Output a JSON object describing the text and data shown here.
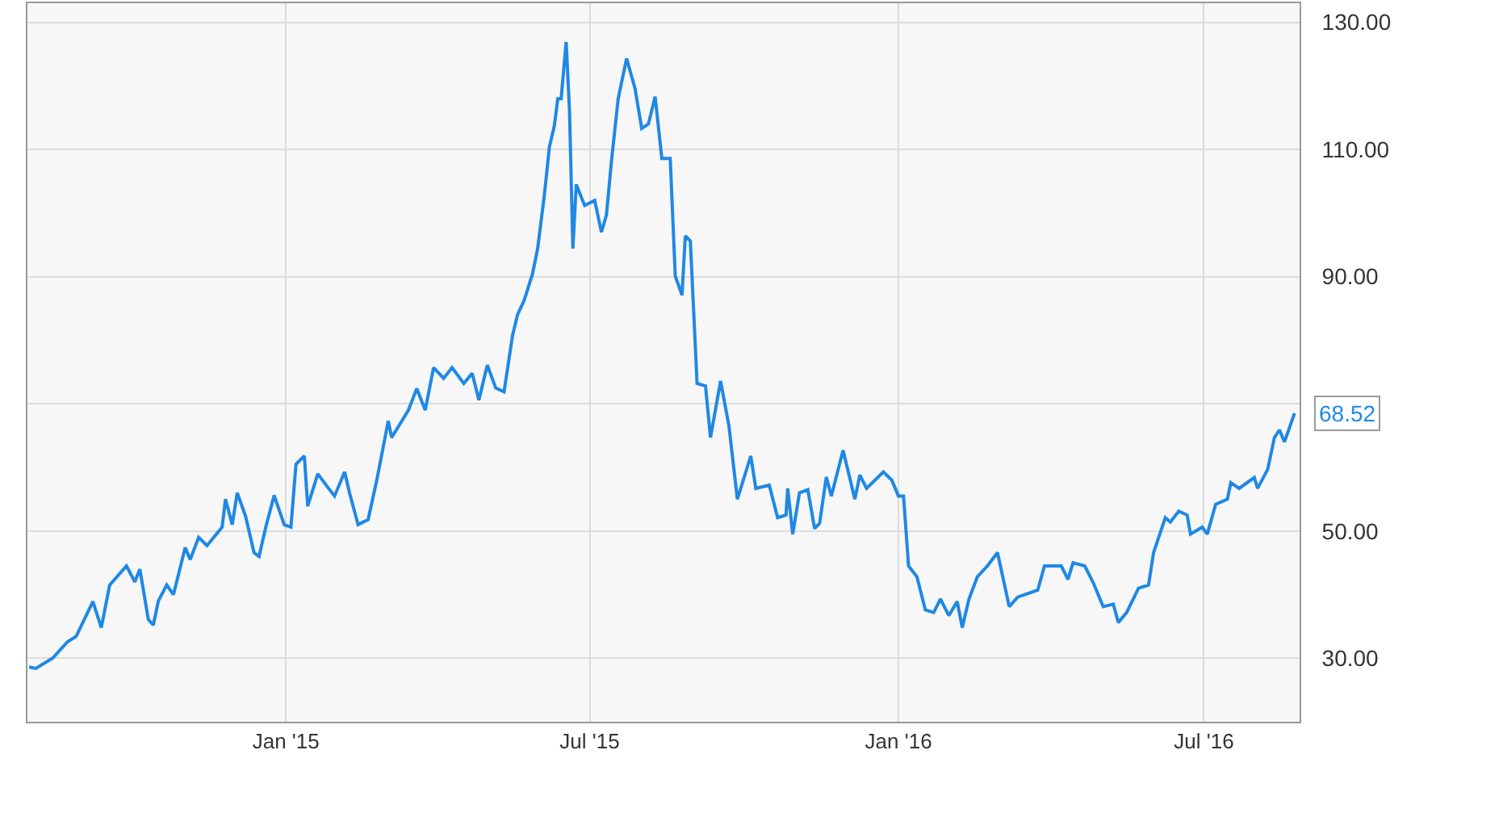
{
  "chart_data": {
    "type": "line",
    "x": [
      "2014-08-01",
      "2014-08-05",
      "2014-08-15",
      "2014-08-24",
      "2014-08-29",
      "2014-09-08",
      "2014-09-13",
      "2014-09-18",
      "2014-09-28",
      "2014-10-03",
      "2014-10-06",
      "2014-10-11",
      "2014-10-14",
      "2014-10-17",
      "2014-10-22",
      "2014-10-26",
      "2014-11-02",
      "2014-11-05",
      "2014-11-10",
      "2014-11-15",
      "2014-11-24",
      "2014-11-26",
      "2014-11-30",
      "2014-12-03",
      "2014-12-08",
      "2014-12-13",
      "2014-12-16",
      "2014-12-20",
      "2014-12-25",
      "2014-12-31",
      "2015-01-04",
      "2015-01-07",
      "2015-01-12",
      "2015-01-14",
      "2015-01-20",
      "2015-01-25",
      "2015-01-30",
      "2015-02-05",
      "2015-02-08",
      "2015-02-13",
      "2015-02-19",
      "2015-02-24",
      "2015-03-03",
      "2015-03-05",
      "2015-03-15",
      "2015-03-20",
      "2015-03-25",
      "2015-03-30",
      "2015-04-05",
      "2015-04-10",
      "2015-04-17",
      "2015-04-22",
      "2015-04-26",
      "2015-05-01",
      "2015-05-06",
      "2015-05-11",
      "2015-05-16",
      "2015-05-19",
      "2015-05-23",
      "2015-05-28",
      "2015-05-31",
      "2015-06-04",
      "2015-06-07",
      "2015-06-10",
      "2015-06-12",
      "2015-06-14",
      "2015-06-17",
      "2015-06-19",
      "2015-06-21",
      "2015-06-23",
      "2015-06-28",
      "2015-07-04",
      "2015-07-08",
      "2015-07-11",
      "2015-07-14",
      "2015-07-18",
      "2015-07-23",
      "2015-07-28",
      "2015-08-01",
      "2015-08-05",
      "2015-08-09",
      "2015-08-13",
      "2015-08-18",
      "2015-08-21",
      "2015-08-25",
      "2015-08-27",
      "2015-08-30",
      "2015-09-03",
      "2015-09-08",
      "2015-09-11",
      "2015-09-17",
      "2015-09-22",
      "2015-09-27",
      "2015-10-05",
      "2015-10-08",
      "2015-10-16",
      "2015-10-21",
      "2015-10-26",
      "2015-10-27",
      "2015-10-30",
      "2015-11-03",
      "2015-11-08",
      "2015-11-12",
      "2015-11-15",
      "2015-11-19",
      "2015-11-22",
      "2015-11-29",
      "2015-12-06",
      "2015-12-09",
      "2015-12-13",
      "2015-12-23",
      "2015-12-28",
      "2016-01-01",
      "2016-01-04",
      "2016-01-07",
      "2016-01-12",
      "2016-01-17",
      "2016-01-22",
      "2016-01-26",
      "2016-01-31",
      "2016-02-05",
      "2016-02-08",
      "2016-02-12",
      "2016-02-17",
      "2016-02-23",
      "2016-02-29",
      "2016-03-07",
      "2016-03-12",
      "2016-03-24",
      "2016-03-28",
      "2016-04-07",
      "2016-04-11",
      "2016-04-14",
      "2016-04-21",
      "2016-04-26",
      "2016-05-02",
      "2016-05-08",
      "2016-05-11",
      "2016-05-16",
      "2016-05-23",
      "2016-05-29",
      "2016-06-01",
      "2016-06-08",
      "2016-06-11",
      "2016-06-16",
      "2016-06-21",
      "2016-06-23",
      "2016-06-30",
      "2016-07-03",
      "2016-07-08",
      "2016-07-15",
      "2016-07-17",
      "2016-07-22",
      "2016-07-31",
      "2016-08-02",
      "2016-08-08",
      "2016-08-12",
      "2016-08-15",
      "2016-08-18",
      "2016-08-24"
    ],
    "series": [
      {
        "color": "#1f88e5",
        "values": [
          28.6,
          28.4,
          30.0,
          32.6,
          33.4,
          38.9,
          34.8,
          41.5,
          44.5,
          42,
          44,
          36.1,
          35.2,
          39,
          41.5,
          40,
          47.4,
          45.5,
          49,
          47.7,
          50.6,
          55,
          51,
          56,
          52.3,
          46.6,
          46,
          50.6,
          55.6,
          51,
          50.6,
          60.5,
          61.8,
          53.9,
          59,
          57.2,
          55.5,
          59.3,
          55.9,
          51,
          51.8,
          57.8,
          67.3,
          64.7,
          69,
          72.4,
          69,
          75.7,
          74,
          75.7,
          73.2,
          74.8,
          70.6,
          76.1,
          72.5,
          71.9,
          80.7,
          84,
          86.3,
          90.5,
          94.4,
          102.8,
          110.4,
          113.8,
          118,
          118,
          126.9,
          116,
          94.4,
          104.5,
          101.2,
          102,
          97,
          99.7,
          108.2,
          118,
          124.3,
          119.6,
          113.3,
          114,
          118.3,
          108.6,
          108.6,
          90.1,
          87.1,
          96.4,
          95.6,
          73.2,
          72.8,
          64.7,
          73.6,
          66.5,
          55,
          61.8,
          56.7,
          57.2,
          52.1,
          52.5,
          56.7,
          49.5,
          56,
          56.5,
          50.4,
          51.2,
          58.5,
          55.5,
          62.7,
          55,
          58.8,
          56.7,
          59.3,
          58,
          55.5,
          55.5,
          44.5,
          42.8,
          37.6,
          37.2,
          39.3,
          36.7,
          38.9,
          34.8,
          39.3,
          42.8,
          44.5,
          46.6,
          38.1,
          39.6,
          40.7,
          44.5,
          44.5,
          42.4,
          45,
          44.5,
          41.9,
          38.1,
          38.5,
          35.6,
          37.2,
          41,
          41.5,
          46.6,
          52.1,
          51.4,
          53.1,
          52.5,
          49.5,
          50.6,
          49.5,
          54.2,
          55,
          57.6,
          56.7,
          58.4,
          56.7,
          59.7,
          64.7,
          65.9,
          64,
          68.52
        ]
      }
    ],
    "xlim": [
      "2014-07-31",
      "2016-08-27"
    ],
    "xticks": [
      {
        "value": "2015-01-01",
        "label": "Jan '15"
      },
      {
        "value": "2015-07-01",
        "label": "Jul '15"
      },
      {
        "value": "2016-01-01",
        "label": "Jan '16"
      },
      {
        "value": "2016-07-01",
        "label": "Jul '16"
      }
    ],
    "ylim": [
      20,
      133
    ],
    "yticks": [
      {
        "value": 30,
        "label": "30.00"
      },
      {
        "value": 50,
        "label": "50.00"
      },
      {
        "value": 70,
        "label": null
      },
      {
        "value": 90,
        "label": "90.00"
      },
      {
        "value": 110,
        "label": "110.00"
      },
      {
        "value": 130,
        "label": "130.00"
      }
    ],
    "annotations": [
      {
        "text": "68.52",
        "x": "2016-08-24",
        "y": 68.52
      }
    ],
    "grid": true,
    "marker": "none",
    "line_style": "solid"
  }
}
